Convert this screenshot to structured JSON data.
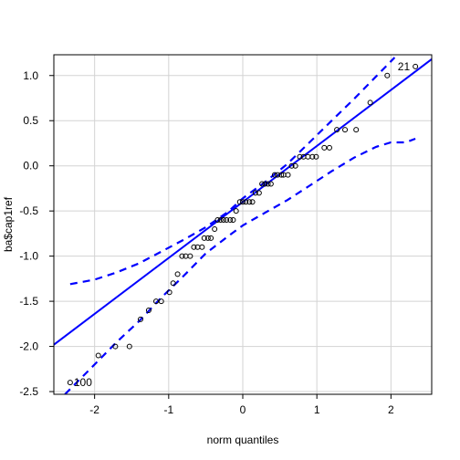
{
  "chart_data": {
    "type": "scatter",
    "title": "",
    "xlabel": "norm quantiles",
    "ylabel": "ba$cap1ref",
    "xlim": [
      -2.55,
      2.55
    ],
    "ylim": [
      -2.53,
      1.23
    ],
    "xticks": [
      -2,
      -1,
      0,
      1,
      2
    ],
    "yticks": [
      -2.5,
      -2.0,
      -1.5,
      -1.0,
      -0.5,
      0.0,
      0.5,
      1.0
    ],
    "xtick_labels": [
      "-2",
      "-1",
      "0",
      "1",
      "2"
    ],
    "ytick_labels": [
      "-2.5",
      "-2.0",
      "-1.5",
      "-1.0",
      "-0.5",
      "0.0",
      "0.5",
      "1.0"
    ],
    "grid": true,
    "colors": {
      "reference": "#0000ff",
      "points": "#000000",
      "grid": "#d3d3d3"
    },
    "points": [
      {
        "x": -2.33,
        "y": -2.4
      },
      {
        "x": -1.95,
        "y": -2.1
      },
      {
        "x": -1.72,
        "y": -2.0
      },
      {
        "x": -1.53,
        "y": -2.0
      },
      {
        "x": -1.38,
        "y": -1.7
      },
      {
        "x": -1.27,
        "y": -1.6
      },
      {
        "x": -1.17,
        "y": -1.5
      },
      {
        "x": -1.1,
        "y": -1.5
      },
      {
        "x": -0.99,
        "y": -1.4
      },
      {
        "x": -0.94,
        "y": -1.3
      },
      {
        "x": -0.88,
        "y": -1.2
      },
      {
        "x": -0.82,
        "y": -1.0
      },
      {
        "x": -0.77,
        "y": -1.0
      },
      {
        "x": -0.71,
        "y": -1.0
      },
      {
        "x": -0.66,
        "y": -0.9
      },
      {
        "x": -0.61,
        "y": -0.9
      },
      {
        "x": -0.55,
        "y": -0.9
      },
      {
        "x": -0.52,
        "y": -0.8
      },
      {
        "x": -0.47,
        "y": -0.8
      },
      {
        "x": -0.43,
        "y": -0.8
      },
      {
        "x": -0.38,
        "y": -0.7
      },
      {
        "x": -0.34,
        "y": -0.6
      },
      {
        "x": -0.3,
        "y": -0.6
      },
      {
        "x": -0.26,
        "y": -0.6
      },
      {
        "x": -0.22,
        "y": -0.6
      },
      {
        "x": -0.17,
        "y": -0.6
      },
      {
        "x": -0.13,
        "y": -0.6
      },
      {
        "x": -0.09,
        "y": -0.5
      },
      {
        "x": -0.04,
        "y": -0.4
      },
      {
        "x": 0.0,
        "y": -0.4
      },
      {
        "x": 0.04,
        "y": -0.4
      },
      {
        "x": 0.09,
        "y": -0.4
      },
      {
        "x": 0.13,
        "y": -0.4
      },
      {
        "x": 0.17,
        "y": -0.3
      },
      {
        "x": 0.22,
        "y": -0.3
      },
      {
        "x": 0.26,
        "y": -0.2
      },
      {
        "x": 0.3,
        "y": -0.2
      },
      {
        "x": 0.34,
        "y": -0.2
      },
      {
        "x": 0.38,
        "y": -0.2
      },
      {
        "x": 0.43,
        "y": -0.1
      },
      {
        "x": 0.47,
        "y": -0.1
      },
      {
        "x": 0.52,
        "y": -0.1
      },
      {
        "x": 0.55,
        "y": -0.1
      },
      {
        "x": 0.61,
        "y": -0.1
      },
      {
        "x": 0.66,
        "y": 0.0
      },
      {
        "x": 0.71,
        "y": 0.0
      },
      {
        "x": 0.77,
        "y": 0.1
      },
      {
        "x": 0.82,
        "y": 0.1
      },
      {
        "x": 0.88,
        "y": 0.1
      },
      {
        "x": 0.94,
        "y": 0.1
      },
      {
        "x": 0.99,
        "y": 0.1
      },
      {
        "x": 1.1,
        "y": 0.2
      },
      {
        "x": 1.17,
        "y": 0.2
      },
      {
        "x": 1.27,
        "y": 0.4
      },
      {
        "x": 1.38,
        "y": 0.4
      },
      {
        "x": 1.53,
        "y": 0.4
      },
      {
        "x": 1.72,
        "y": 0.7
      },
      {
        "x": 1.95,
        "y": 1.0
      },
      {
        "x": 2.33,
        "y": 1.1
      }
    ],
    "point_labels": [
      {
        "text": "100",
        "x": -2.33,
        "y": -2.4,
        "side": "right"
      },
      {
        "text": "21",
        "x": 2.33,
        "y": 1.1,
        "side": "left"
      }
    ],
    "reference_line": {
      "intercept": -0.4,
      "slope": 0.62
    },
    "envelope_upper": [
      {
        "x": -2.33,
        "y": -1.31
      },
      {
        "x": -2.0,
        "y": -1.26
      },
      {
        "x": -1.7,
        "y": -1.18
      },
      {
        "x": -1.4,
        "y": -1.08
      },
      {
        "x": -1.1,
        "y": -0.95
      },
      {
        "x": -0.8,
        "y": -0.82
      },
      {
        "x": -0.5,
        "y": -0.68
      },
      {
        "x": -0.2,
        "y": -0.51
      },
      {
        "x": 0.0,
        "y": -0.36
      },
      {
        "x": 0.3,
        "y": -0.18
      },
      {
        "x": 0.6,
        "y": 0.02
      },
      {
        "x": 0.9,
        "y": 0.26
      },
      {
        "x": 1.2,
        "y": 0.5
      },
      {
        "x": 1.5,
        "y": 0.74
      },
      {
        "x": 1.8,
        "y": 0.99
      },
      {
        "x": 2.05,
        "y": 1.2
      }
    ],
    "envelope_lower": [
      {
        "x": -2.4,
        "y": -2.53
      },
      {
        "x": -2.0,
        "y": -2.2
      },
      {
        "x": -1.7,
        "y": -1.95
      },
      {
        "x": -1.4,
        "y": -1.72
      },
      {
        "x": -1.1,
        "y": -1.46
      },
      {
        "x": -0.8,
        "y": -1.22
      },
      {
        "x": -0.5,
        "y": -0.97
      },
      {
        "x": -0.2,
        "y": -0.78
      },
      {
        "x": 0.0,
        "y": -0.66
      },
      {
        "x": 0.3,
        "y": -0.52
      },
      {
        "x": 0.6,
        "y": -0.38
      },
      {
        "x": 0.9,
        "y": -0.22
      },
      {
        "x": 1.2,
        "y": -0.06
      },
      {
        "x": 1.5,
        "y": 0.09
      },
      {
        "x": 1.8,
        "y": 0.21
      },
      {
        "x": 2.0,
        "y": 0.26
      },
      {
        "x": 2.2,
        "y": 0.26
      },
      {
        "x": 2.33,
        "y": 0.3
      }
    ]
  }
}
